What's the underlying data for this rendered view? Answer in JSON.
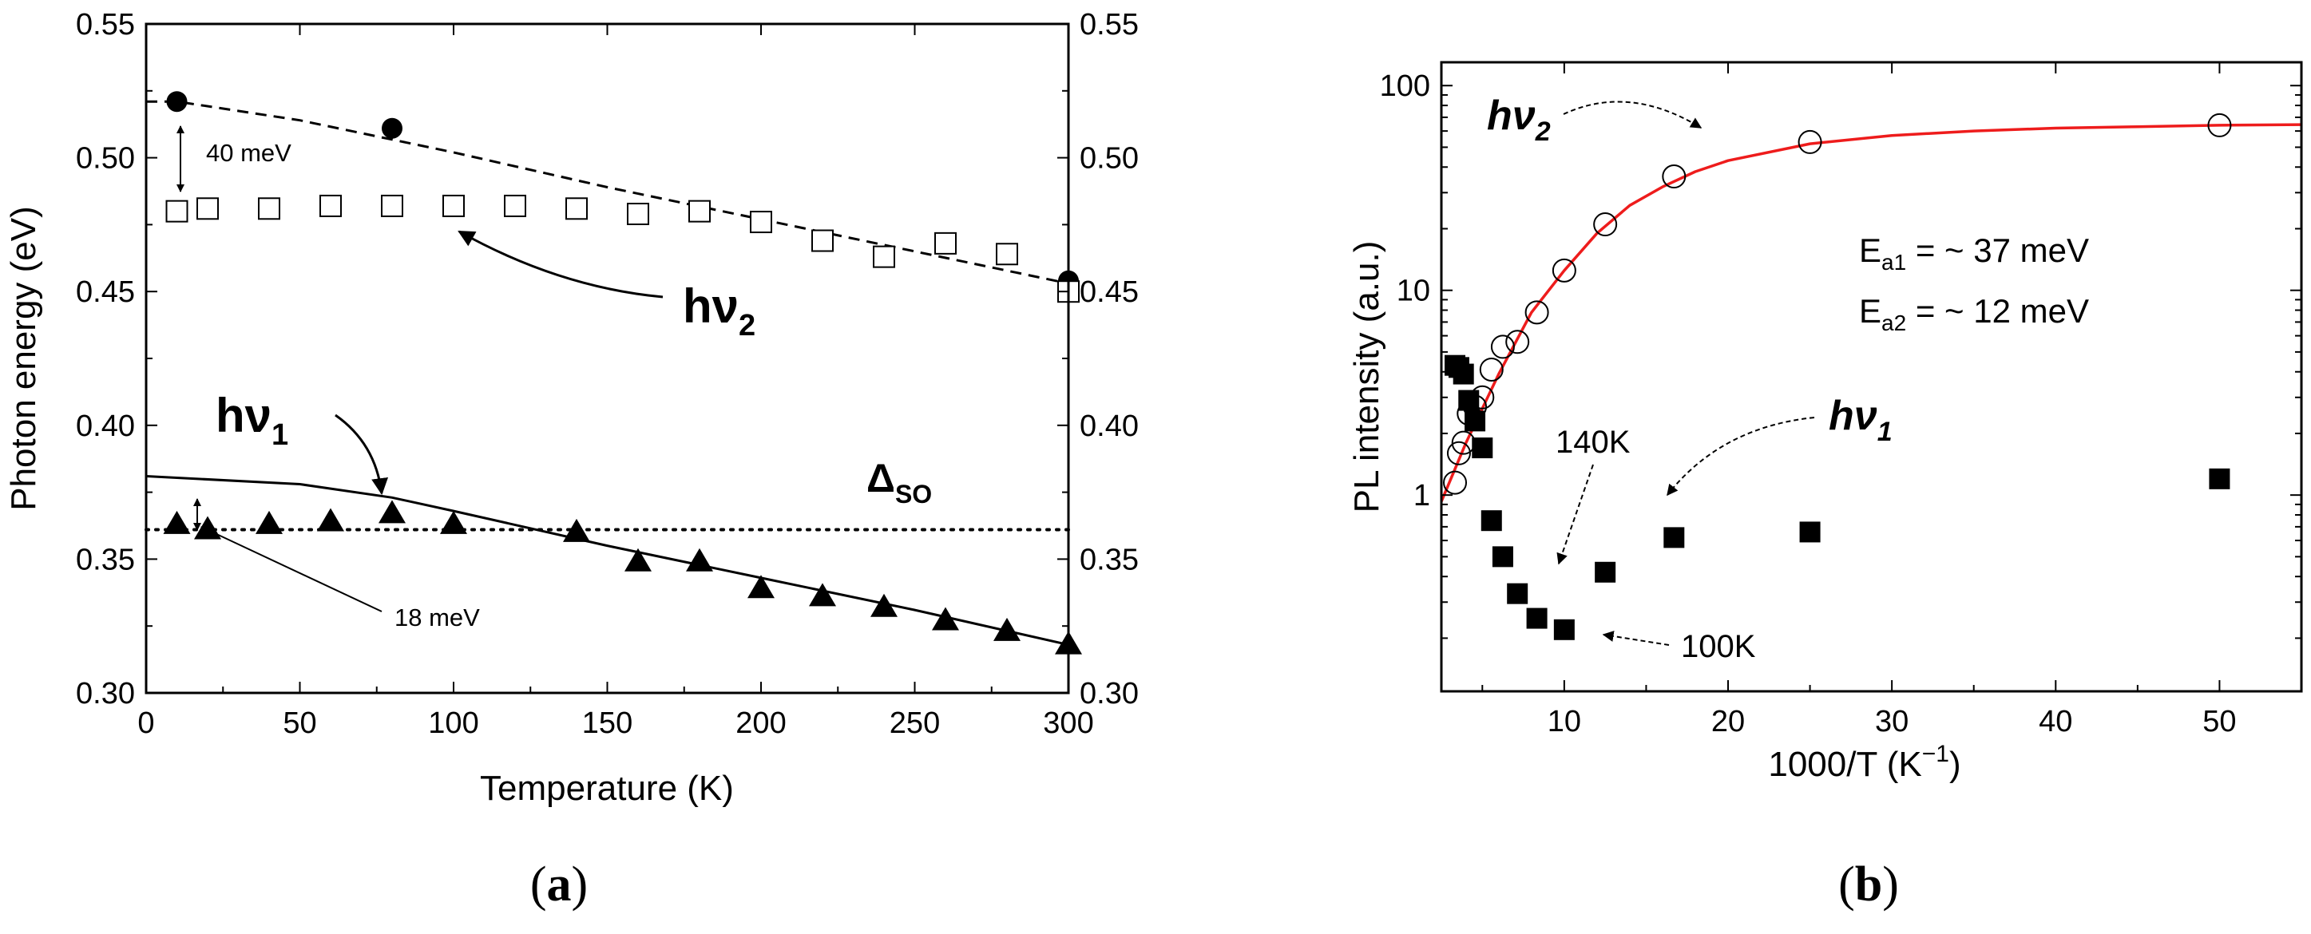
{
  "chart_data": [
    {
      "panel": "(a)",
      "panel_label_letter": "a",
      "type": "scatter",
      "xlabel": "Temperature (K)",
      "ylabel": "Photon energy (eV)",
      "xlim": [
        0,
        300
      ],
      "ylim": [
        0.3,
        0.55
      ],
      "xticks": [
        0,
        50,
        100,
        150,
        200,
        250,
        300
      ],
      "yticks": [
        0.3,
        0.35,
        0.4,
        0.45,
        0.5,
        0.55
      ],
      "ytick_labels": [
        "0.30",
        "0.35",
        "0.40",
        "0.45",
        "0.50",
        "0.55"
      ],
      "series": [
        {
          "name": "filled circles",
          "marker": "filled-circle",
          "x": [
            10,
            80,
            300
          ],
          "y": [
            0.521,
            0.511,
            0.454
          ]
        },
        {
          "name": "hν2 (open squares)",
          "marker": "open-square",
          "x": [
            10,
            20,
            40,
            60,
            80,
            100,
            120,
            140,
            160,
            180,
            200,
            220,
            240,
            260,
            280,
            300
          ],
          "y": [
            0.48,
            0.481,
            0.481,
            0.482,
            0.482,
            0.482,
            0.482,
            0.481,
            0.479,
            0.48,
            0.476,
            0.469,
            0.463,
            0.468,
            0.464,
            0.45
          ]
        },
        {
          "name": "hν1 (filled triangles)",
          "marker": "filled-triangle",
          "x": [
            10,
            20,
            40,
            60,
            80,
            100,
            140,
            160,
            180,
            200,
            220,
            240,
            260,
            280,
            300
          ],
          "y": [
            0.363,
            0.361,
            0.363,
            0.364,
            0.367,
            0.363,
            0.36,
            0.349,
            0.349,
            0.339,
            0.336,
            0.332,
            0.327,
            0.323,
            0.318
          ]
        },
        {
          "name": "dashed fit",
          "style": "dashed",
          "x": [
            0,
            10,
            50,
            100,
            150,
            200,
            250,
            300
          ],
          "y": [
            0.521,
            0.521,
            0.514,
            0.502,
            0.489,
            0.477,
            0.465,
            0.453
          ]
        },
        {
          "name": "solid fit",
          "style": "solid",
          "x": [
            0,
            50,
            80,
            100,
            150,
            200,
            250,
            300
          ],
          "y": [
            0.381,
            0.378,
            0.373,
            0.368,
            0.355,
            0.343,
            0.331,
            0.318
          ]
        },
        {
          "name": "Δso level",
          "style": "dotted",
          "x": [
            0,
            300
          ],
          "y": [
            0.361,
            0.361
          ]
        }
      ],
      "annotations": {
        "hv2": {
          "main": "hν",
          "sub": "2"
        },
        "hv1": {
          "main": "hν",
          "sub": "1"
        },
        "delta": {
          "main": "Δ",
          "sub": "SO"
        },
        "mev40": "40 meV",
        "mev18": "18 meV"
      }
    },
    {
      "panel": "(b)",
      "panel_label_letter": "b",
      "type": "scatter",
      "xlabel": "1000/T (K",
      "xlabel_sup": "−1",
      "xlabel_end": ")",
      "ylabel": "PL intensity (a.u.)",
      "yscale": "log",
      "xlim": [
        2.5,
        55
      ],
      "ylim": [
        0.11,
        130
      ],
      "xticks": [
        10,
        20,
        30,
        40,
        50
      ],
      "yticks": [
        1,
        10,
        100
      ],
      "ytick_labels": [
        "1",
        "10",
        "100"
      ],
      "series": [
        {
          "name": "hν2 (open circles)",
          "marker": "open-circle",
          "x": [
            3.33,
            3.57,
            3.85,
            4.17,
            4.55,
            5.0,
            5.56,
            6.25,
            7.14,
            8.33,
            10.0,
            12.5,
            16.7,
            25.0,
            50.0
          ],
          "y": [
            1.15,
            1.6,
            1.8,
            2.5,
            2.7,
            3.0,
            4.1,
            5.3,
            5.6,
            7.8,
            12.5,
            21.0,
            36.0,
            53.0,
            64.0
          ]
        },
        {
          "name": "hν1 (filled squares)",
          "marker": "filled-square",
          "x": [
            3.33,
            3.57,
            3.85,
            4.17,
            4.55,
            5.0,
            5.56,
            6.25,
            7.14,
            8.33,
            10.0,
            12.5,
            16.7,
            25.0,
            50.0
          ],
          "y": [
            4.3,
            4.2,
            3.9,
            2.9,
            2.3,
            1.7,
            0.75,
            0.5,
            0.33,
            0.25,
            0.22,
            0.42,
            0.62,
            0.66,
            1.2
          ]
        },
        {
          "name": "fit (red)",
          "style": "solid",
          "color": "#ee1c1c",
          "x": [
            2.5,
            4,
            6,
            8,
            10,
            12,
            14,
            16,
            18,
            20,
            25,
            30,
            35,
            40,
            45,
            50,
            55
          ],
          "y": [
            0.93,
            1.8,
            3.9,
            7.8,
            12.5,
            19.0,
            26.0,
            32.0,
            38.0,
            43.0,
            52.0,
            57.0,
            60.0,
            62.0,
            63.0,
            64.0,
            64.5
          ]
        }
      ],
      "annotations": {
        "hv2": {
          "main": "hν",
          "sub": "2"
        },
        "hv1": {
          "main": "hν",
          "sub": "1"
        },
        "ea1": {
          "main": "E",
          "sub": "a1",
          "rest": " = ~ 37 meV"
        },
        "ea2": {
          "main": "E",
          "sub": "a2",
          "rest": " = ~ 12 meV"
        },
        "k140": "140K",
        "k100": "100K"
      }
    }
  ],
  "colors": {
    "fit_b": "#ee1c1c",
    "ink": "#000000"
  }
}
